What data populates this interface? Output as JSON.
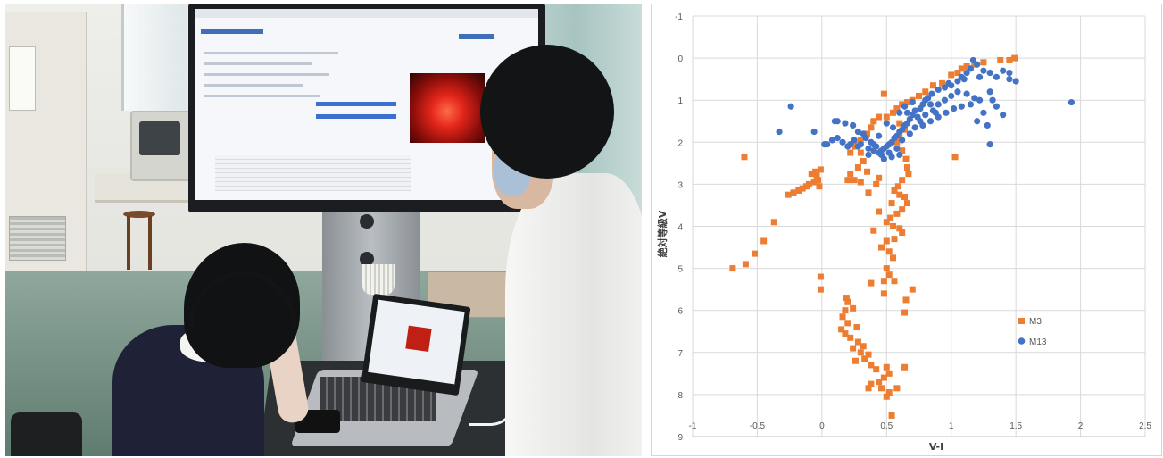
{
  "chart_data": {
    "type": "scatter",
    "xlabel": "V-I",
    "ylabel": "絶対等級V",
    "xlim": [
      -1,
      2.5
    ],
    "ylim": [
      -1,
      9
    ],
    "y_inverted": true,
    "grid": true,
    "legend_position": "right",
    "x_ticks": [
      "-1",
      "-0.5",
      "0",
      "0.5",
      "1",
      "1.5",
      "2",
      "2.5"
    ],
    "y_ticks": [
      "-1",
      "0",
      "1",
      "2",
      "3",
      "4",
      "5",
      "6",
      "7",
      "8",
      "9"
    ],
    "series": [
      {
        "name": "M3",
        "color": "#ED7D31",
        "marker": "square",
        "points": [
          [
            1.49,
            0.0
          ],
          [
            1.45,
            0.05
          ],
          [
            1.38,
            0.05
          ],
          [
            1.25,
            0.1
          ],
          [
            1.18,
            0.15
          ],
          [
            1.12,
            0.2
          ],
          [
            1.08,
            0.25
          ],
          [
            1.05,
            0.35
          ],
          [
            1.0,
            0.4
          ],
          [
            0.93,
            0.6
          ],
          [
            0.86,
            0.65
          ],
          [
            0.8,
            0.8
          ],
          [
            0.75,
            0.9
          ],
          [
            0.7,
            1.0
          ],
          [
            0.66,
            1.05
          ],
          [
            0.62,
            1.1
          ],
          [
            0.58,
            1.2
          ],
          [
            0.55,
            1.3
          ],
          [
            0.5,
            1.4
          ],
          [
            0.48,
            0.85
          ],
          [
            0.44,
            1.4
          ],
          [
            0.4,
            1.5
          ],
          [
            0.38,
            1.65
          ],
          [
            0.35,
            1.8
          ],
          [
            0.3,
            1.95
          ],
          [
            0.26,
            2.1
          ],
          [
            0.22,
            2.25
          ],
          [
            0.6,
            1.55
          ],
          [
            0.64,
            1.7
          ],
          [
            0.6,
            1.85
          ],
          [
            0.58,
            2.0
          ],
          [
            0.62,
            2.2
          ],
          [
            0.65,
            2.4
          ],
          [
            0.66,
            2.6
          ],
          [
            0.67,
            2.75
          ],
          [
            0.62,
            2.9
          ],
          [
            0.59,
            3.05
          ],
          [
            0.56,
            3.15
          ],
          [
            0.6,
            3.25
          ],
          [
            0.64,
            3.3
          ],
          [
            0.66,
            3.45
          ],
          [
            0.62,
            3.6
          ],
          [
            0.58,
            3.7
          ],
          [
            0.53,
            3.8
          ],
          [
            0.5,
            3.9
          ],
          [
            0.55,
            4.0
          ],
          [
            0.6,
            4.05
          ],
          [
            0.62,
            4.15
          ],
          [
            0.56,
            4.3
          ],
          [
            0.5,
            4.35
          ],
          [
            0.46,
            4.5
          ],
          [
            0.52,
            4.6
          ],
          [
            0.55,
            4.75
          ],
          [
            0.5,
            5.0
          ],
          [
            0.52,
            5.15
          ],
          [
            0.56,
            5.3
          ],
          [
            0.48,
            5.3
          ],
          [
            0.38,
            5.35
          ],
          [
            0.7,
            5.5
          ],
          [
            0.65,
            5.75
          ],
          [
            0.4,
            4.1
          ],
          [
            0.44,
            3.65
          ],
          [
            0.54,
            3.45
          ],
          [
            0.36,
            3.2
          ],
          [
            0.42,
            3.0
          ],
          [
            0.3,
            2.95
          ],
          [
            0.25,
            2.9
          ],
          [
            0.2,
            2.9
          ],
          [
            0.35,
            2.7
          ],
          [
            0.28,
            2.6
          ],
          [
            0.22,
            2.75
          ],
          [
            0.32,
            2.45
          ],
          [
            0.3,
            2.25
          ],
          [
            0.25,
            2.05
          ],
          [
            0.44,
            2.85
          ],
          [
            -0.01,
            2.65
          ],
          [
            -0.05,
            2.7
          ],
          [
            -0.04,
            2.8
          ],
          [
            -0.03,
            2.9
          ],
          [
            -0.06,
            2.95
          ],
          [
            -0.1,
            3.0
          ],
          [
            -0.12,
            3.05
          ],
          [
            -0.15,
            3.1
          ],
          [
            -0.18,
            3.15
          ],
          [
            -0.22,
            3.2
          ],
          [
            -0.26,
            3.25
          ],
          [
            -0.08,
            2.75
          ],
          [
            -0.02,
            3.05
          ],
          [
            -0.37,
            3.9
          ],
          [
            -0.45,
            4.35
          ],
          [
            -0.52,
            4.65
          ],
          [
            -0.59,
            4.9
          ],
          [
            -0.69,
            5.0
          ],
          [
            -0.6,
            2.35
          ],
          [
            1.03,
            2.35
          ],
          [
            -0.01,
            5.2
          ],
          [
            -0.01,
            5.5
          ],
          [
            0.2,
            5.8
          ],
          [
            0.18,
            6.0
          ],
          [
            0.16,
            6.15
          ],
          [
            0.2,
            6.3
          ],
          [
            0.15,
            6.45
          ],
          [
            0.18,
            6.55
          ],
          [
            0.22,
            6.65
          ],
          [
            0.28,
            6.75
          ],
          [
            0.32,
            6.85
          ],
          [
            0.24,
            6.9
          ],
          [
            0.3,
            7.0
          ],
          [
            0.36,
            7.05
          ],
          [
            0.33,
            7.15
          ],
          [
            0.26,
            7.2
          ],
          [
            0.38,
            7.3
          ],
          [
            0.42,
            7.4
          ],
          [
            0.5,
            7.35
          ],
          [
            0.52,
            7.5
          ],
          [
            0.48,
            7.6
          ],
          [
            0.44,
            7.7
          ],
          [
            0.38,
            7.75
          ],
          [
            0.36,
            7.85
          ],
          [
            0.46,
            7.85
          ],
          [
            0.52,
            7.95
          ],
          [
            0.58,
            7.85
          ],
          [
            0.5,
            8.05
          ],
          [
            0.54,
            8.5
          ],
          [
            0.64,
            7.35
          ],
          [
            0.64,
            6.05
          ],
          [
            0.48,
            5.6
          ],
          [
            0.19,
            5.7
          ],
          [
            0.24,
            5.95
          ],
          [
            0.27,
            6.4
          ]
        ]
      },
      {
        "name": "M13",
        "color": "#4472C4",
        "marker": "circle",
        "points": [
          [
            1.17,
            0.05
          ],
          [
            1.2,
            0.15
          ],
          [
            1.15,
            0.25
          ],
          [
            1.25,
            0.3
          ],
          [
            1.3,
            0.35
          ],
          [
            1.4,
            0.3
          ],
          [
            1.45,
            0.5
          ],
          [
            1.35,
            0.45
          ],
          [
            1.22,
            0.45
          ],
          [
            1.1,
            0.5
          ],
          [
            1.05,
            0.55
          ],
          [
            0.98,
            0.6
          ],
          [
            0.95,
            0.7
          ],
          [
            0.9,
            0.75
          ],
          [
            0.85,
            0.85
          ],
          [
            0.82,
            0.95
          ],
          [
            0.8,
            1.0
          ],
          [
            0.78,
            1.1
          ],
          [
            0.76,
            1.2
          ],
          [
            0.72,
            1.25
          ],
          [
            0.7,
            1.35
          ],
          [
            0.68,
            1.45
          ],
          [
            0.66,
            1.55
          ],
          [
            0.64,
            1.6
          ],
          [
            0.62,
            1.7
          ],
          [
            0.6,
            1.75
          ],
          [
            0.58,
            1.85
          ],
          [
            0.56,
            1.9
          ],
          [
            0.54,
            2.0
          ],
          [
            0.52,
            2.05
          ],
          [
            0.5,
            2.1
          ],
          [
            0.48,
            2.15
          ],
          [
            0.46,
            2.2
          ],
          [
            0.44,
            2.25
          ],
          [
            0.42,
            2.1
          ],
          [
            0.4,
            2.2
          ],
          [
            0.38,
            2.0
          ],
          [
            0.36,
            2.15
          ],
          [
            0.34,
            1.9
          ],
          [
            0.3,
            2.05
          ],
          [
            0.28,
            2.1
          ],
          [
            0.25,
            1.95
          ],
          [
            0.22,
            2.05
          ],
          [
            0.2,
            2.1
          ],
          [
            0.16,
            2.0
          ],
          [
            0.12,
            1.9
          ],
          [
            0.08,
            1.95
          ],
          [
            0.04,
            2.05
          ],
          [
            0.66,
            1.3
          ],
          [
            0.74,
            1.4
          ],
          [
            0.8,
            1.35
          ],
          [
            0.86,
            1.25
          ],
          [
            0.9,
            1.1
          ],
          [
            0.95,
            1.0
          ],
          [
            1.0,
            0.9
          ],
          [
            1.05,
            0.8
          ],
          [
            1.12,
            0.85
          ],
          [
            1.18,
            0.95
          ],
          [
            1.22,
            1.0
          ],
          [
            1.15,
            1.1
          ],
          [
            1.08,
            1.15
          ],
          [
            1.02,
            1.2
          ],
          [
            0.96,
            1.3
          ],
          [
            0.9,
            1.4
          ],
          [
            0.84,
            1.5
          ],
          [
            0.78,
            1.6
          ],
          [
            0.72,
            1.65
          ],
          [
            0.68,
            1.8
          ],
          [
            0.62,
            1.95
          ],
          [
            0.58,
            2.15
          ],
          [
            0.52,
            2.25
          ],
          [
            0.46,
            2.3
          ],
          [
            0.6,
            1.3
          ],
          [
            0.64,
            1.15
          ],
          [
            0.7,
            1.05
          ],
          [
            0.84,
            1.1
          ],
          [
            0.88,
            1.3
          ],
          [
            0.76,
            1.5
          ],
          [
            1.3,
            0.8
          ],
          [
            1.32,
            1.0
          ],
          [
            1.25,
            1.3
          ],
          [
            1.2,
            1.5
          ],
          [
            1.35,
            1.15
          ],
          [
            1.4,
            1.35
          ],
          [
            1.28,
            1.6
          ],
          [
            1.3,
            2.05
          ],
          [
            1.93,
            1.05
          ],
          [
            -0.24,
            1.15
          ],
          [
            -0.33,
            1.75
          ],
          [
            -0.06,
            1.75
          ],
          [
            0.02,
            2.05
          ],
          [
            0.1,
            1.5
          ],
          [
            0.12,
            1.5
          ],
          [
            0.18,
            1.55
          ],
          [
            0.24,
            1.6
          ],
          [
            0.28,
            1.75
          ],
          [
            0.32,
            1.8
          ],
          [
            1.0,
            0.65
          ],
          [
            1.08,
            0.45
          ],
          [
            1.12,
            0.35
          ],
          [
            1.45,
            0.35
          ],
          [
            1.5,
            0.55
          ],
          [
            0.5,
            1.55
          ],
          [
            0.55,
            1.65
          ],
          [
            0.44,
            1.85
          ],
          [
            0.4,
            2.05
          ],
          [
            0.36,
            2.3
          ],
          [
            0.6,
            2.3
          ],
          [
            0.54,
            2.35
          ],
          [
            0.48,
            2.4
          ]
        ]
      }
    ]
  }
}
